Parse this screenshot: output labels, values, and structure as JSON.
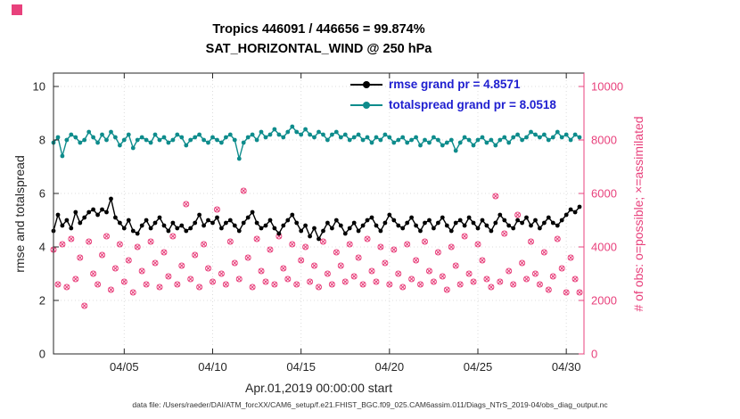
{
  "figure": {
    "caption": "data file: /Users/raeder/DAI/ATM_forcXX/CAM6_setup/f.e21.FHIST_BGC.f09_025.CAM6assim.011/Diags_NTrS_2019-04/obs_diag_output.nc"
  },
  "colors": {
    "axis": "#262626",
    "grid": "#dcdcdc",
    "rmse_black": "#000000",
    "totalspread_teal": "#0e8c8c",
    "obs_pink": "#e8417c",
    "legend_text": "#2020d0",
    "title_text": "#000000"
  },
  "chart_data": {
    "type": "line",
    "title": "Tropics 446091 / 446656 = 99.874%",
    "subtitle": "SAT_HORIZONTAL_WIND @ 250 hPa",
    "stats": {
      "assimilated": 446091,
      "possible": 446656,
      "percent_assimilated": 99.874
    },
    "xlabel": "Apr.01,2019 00:00:00 start",
    "ylabel_left": "rmse and totalspread",
    "ylabel_right": "# of obs: o=possible; ×=assimilated",
    "grid": true,
    "legend_position": "top-right-inside",
    "xlim_days": [
      1,
      31
    ],
    "ylim_left": [
      0,
      10.5
    ],
    "ylim_right": [
      0,
      10500
    ],
    "x_start_day": 1.0,
    "x_step_days": 0.25,
    "xticks": [
      {
        "day": 5,
        "label": "04/05"
      },
      {
        "day": 10,
        "label": "04/10"
      },
      {
        "day": 15,
        "label": "04/15"
      },
      {
        "day": 20,
        "label": "04/20"
      },
      {
        "day": 25,
        "label": "04/25"
      },
      {
        "day": 30,
        "label": "04/30"
      }
    ],
    "yticks_left": [
      0,
      2,
      4,
      6,
      8,
      10
    ],
    "yticks_right": [
      0,
      2000,
      4000,
      6000,
      8000,
      10000
    ],
    "legend": [
      {
        "label": "rmse grand pr = 4.8571",
        "color": "#000000"
      },
      {
        "label": "totalspread grand pr = 8.0518",
        "color": "#0e8c8c"
      }
    ],
    "grand_means": {
      "rmse": 4.8571,
      "totalspread": 8.0518
    },
    "series": [
      {
        "name": "rmse",
        "axis": "left",
        "marker": "filled-circle",
        "color": "#000000",
        "values": [
          4.6,
          5.2,
          4.8,
          5.0,
          4.7,
          5.3,
          4.9,
          5.1,
          5.3,
          5.4,
          5.2,
          5.4,
          5.3,
          5.8,
          5.1,
          4.9,
          4.7,
          5.0,
          4.6,
          4.5,
          4.8,
          5.0,
          4.7,
          4.9,
          5.1,
          4.8,
          4.6,
          4.9,
          4.7,
          4.8,
          4.6,
          4.7,
          4.9,
          5.2,
          4.8,
          5.0,
          4.9,
          5.1,
          4.7,
          4.9,
          5.0,
          4.8,
          4.6,
          4.9,
          5.1,
          5.3,
          4.9,
          4.7,
          4.8,
          5.0,
          4.7,
          4.5,
          4.8,
          5.0,
          5.2,
          4.9,
          4.6,
          4.8,
          4.4,
          4.7,
          4.3,
          4.6,
          4.9,
          4.7,
          5.0,
          4.8,
          4.5,
          4.7,
          4.9,
          4.6,
          4.8,
          5.0,
          5.1,
          4.8,
          4.6,
          4.9,
          5.2,
          5.0,
          4.8,
          4.7,
          4.9,
          5.1,
          4.8,
          4.6,
          4.9,
          5.0,
          4.7,
          4.9,
          5.1,
          4.8,
          4.6,
          4.9,
          5.0,
          4.8,
          5.1,
          4.9,
          4.7,
          5.0,
          4.8,
          4.6,
          4.9,
          5.2,
          5.0,
          4.8,
          4.7,
          5.0,
          4.9,
          5.1,
          4.8,
          5.0,
          4.7,
          4.9,
          5.1,
          4.9,
          4.8,
          5.0,
          5.2,
          5.4,
          5.3,
          5.5
        ]
      },
      {
        "name": "totalspread",
        "axis": "left",
        "marker": "filled-circle",
        "color": "#0e8c8c",
        "values": [
          7.9,
          8.1,
          7.4,
          8.0,
          8.2,
          8.1,
          7.9,
          8.0,
          8.3,
          8.1,
          7.9,
          8.2,
          8.0,
          8.3,
          8.1,
          7.8,
          8.0,
          8.2,
          7.7,
          8.0,
          8.1,
          8.0,
          7.9,
          8.2,
          8.0,
          8.1,
          7.9,
          8.0,
          8.2,
          8.1,
          7.8,
          8.0,
          8.1,
          8.2,
          8.0,
          7.9,
          8.1,
          8.0,
          7.9,
          8.1,
          8.2,
          8.0,
          7.3,
          7.9,
          8.1,
          8.2,
          8.0,
          8.3,
          8.1,
          8.2,
          8.4,
          8.2,
          8.1,
          8.3,
          8.5,
          8.3,
          8.2,
          8.4,
          8.2,
          8.1,
          8.3,
          8.2,
          8.0,
          8.2,
          8.3,
          8.1,
          8.2,
          8.0,
          8.1,
          8.2,
          8.0,
          8.1,
          7.9,
          8.1,
          8.0,
          8.2,
          8.1,
          7.9,
          8.0,
          8.1,
          7.9,
          8.0,
          8.1,
          7.8,
          8.0,
          7.9,
          8.1,
          8.0,
          7.8,
          7.9,
          8.0,
          7.6,
          7.9,
          8.1,
          8.0,
          7.8,
          8.0,
          8.1,
          7.9,
          8.0,
          7.8,
          8.0,
          8.1,
          7.9,
          8.1,
          8.2,
          8.0,
          8.1,
          8.3,
          8.2,
          8.1,
          8.2,
          8.0,
          8.1,
          8.3,
          8.1,
          8.2,
          8.0,
          8.2,
          8.1
        ]
      },
      {
        "name": "observations",
        "description": "# of obs per bin; o=possible and ×=assimilated plotted at (nearly) identical values",
        "axis": "right",
        "marker": "circle-plus-cross",
        "color": "#e8417c",
        "values": [
          3900,
          2600,
          4100,
          2500,
          4300,
          2800,
          3600,
          1800,
          4200,
          3000,
          2600,
          3700,
          4400,
          2400,
          3200,
          4100,
          2700,
          3500,
          2300,
          4000,
          3100,
          2600,
          4200,
          3400,
          2500,
          3800,
          2900,
          4400,
          2600,
          3300,
          5600,
          2800,
          3700,
          2500,
          4100,
          3200,
          2700,
          5400,
          3000,
          2600,
          4200,
          3400,
          2800,
          6100,
          3600,
          2500,
          4300,
          3100,
          2700,
          3900,
          2600,
          4400,
          3200,
          2800,
          4100,
          2600,
          3500,
          4000,
          2700,
          3300,
          2500,
          4200,
          3000,
          2600,
          3800,
          3300,
          2700,
          4100,
          2900,
          3600,
          2600,
          4300,
          3100,
          2700,
          4000,
          3400,
          2600,
          3900,
          3000,
          2500,
          4100,
          2800,
          3500,
          2600,
          4200,
          3100,
          2700,
          3800,
          2900,
          2400,
          4000,
          3300,
          2600,
          4400,
          3000,
          2700,
          4100,
          3500,
          2800,
          2500,
          5900,
          2700,
          4500,
          3100,
          2600,
          5200,
          3400,
          2800,
          4200,
          3000,
          2600,
          3800,
          2400,
          2900,
          4300,
          3200,
          2300,
          3600,
          2800,
          2300
        ]
      }
    ]
  }
}
